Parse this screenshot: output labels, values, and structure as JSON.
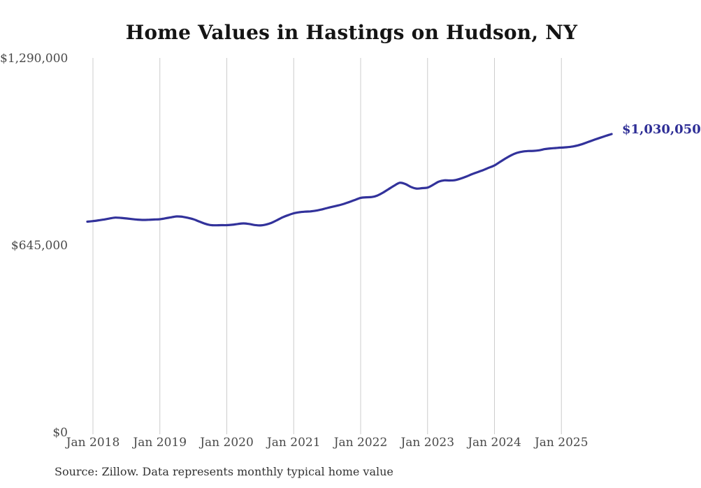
{
  "page": {
    "source_note": "Source: Zillow. Data represents monthly typical home value"
  },
  "chart_data": {
    "type": "line",
    "title": "Home Values in Hastings on Hudson, NY",
    "series_name": "Monthly typical home value",
    "x_start": "2017-12",
    "x_end": "2025-10",
    "start_offset_months": -1,
    "x_tick_labels": [
      "Jan 2018",
      "Jan 2019",
      "Jan 2020",
      "Jan 2021",
      "Jan 2022",
      "Jan 2023",
      "Jan 2024",
      "Jan 2025"
    ],
    "y_tick_labels": [
      "$1,290,000",
      "$645,000",
      "$0"
    ],
    "y_tick_values": [
      1290000,
      645000,
      0
    ],
    "ylim": [
      0,
      1290000
    ],
    "grid": "vertical-only",
    "legend": "none",
    "line_color": "#32329b",
    "grid_color": "#cccccc",
    "end_value": 1030050,
    "end_value_label": "$1,030,050",
    "values": [
      728000,
      730000,
      732500,
      735500,
      739000,
      742000,
      741000,
      739000,
      737000,
      735000,
      734000,
      734500,
      735500,
      736500,
      739500,
      743000,
      746000,
      745000,
      741500,
      736500,
      729000,
      721500,
      716500,
      715500,
      716000,
      716000,
      717500,
      720000,
      722000,
      720000,
      716500,
      715000,
      718000,
      724000,
      733000,
      743000,
      750500,
      757000,
      760500,
      762500,
      763500,
      766000,
      770000,
      775000,
      779500,
      784000,
      789500,
      796000,
      803000,
      810000,
      812000,
      813000,
      818000,
      828000,
      840000,
      852000,
      862000,
      858000,
      848000,
      842000,
      843500,
      845500,
      855000,
      866000,
      870500,
      870000,
      871500,
      877000,
      884000,
      892000,
      899000,
      906000,
      914000,
      922000,
      934000,
      946000,
      957000,
      965000,
      969500,
      971500,
      972000,
      974000,
      978000,
      980500,
      982000,
      983500,
      984500,
      987000,
      991000,
      997000,
      1004000,
      1011000,
      1017500,
      1024000,
      1030050
    ]
  }
}
